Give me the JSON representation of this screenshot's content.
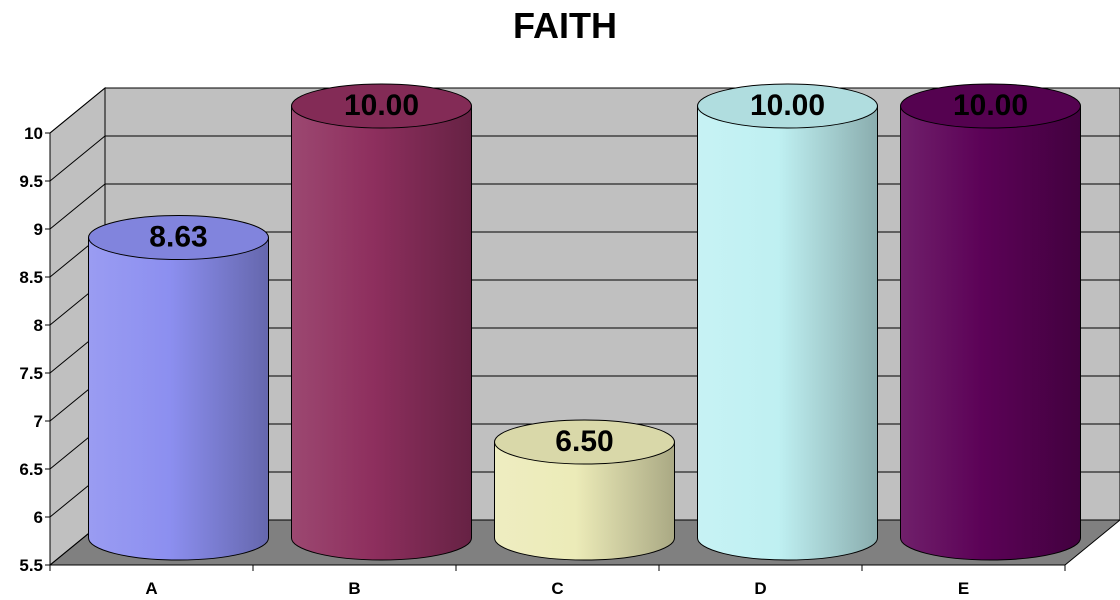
{
  "chart_data": {
    "type": "bar",
    "style": "3d-cylinder",
    "title": "FAITH",
    "xlabel": "",
    "ylabel": "",
    "categories": [
      "A",
      "B",
      "C",
      "D",
      "E"
    ],
    "values": [
      8.63,
      10.0,
      6.5,
      10.0,
      10.0
    ],
    "value_labels": [
      "8.63",
      "10.00",
      "6.50",
      "10.00",
      "10.00"
    ],
    "ylim": [
      5.5,
      10
    ],
    "yticks": [
      "5.5",
      "6",
      "6.5",
      "7",
      "7.5",
      "8",
      "8.5",
      "9",
      "9.5",
      "10"
    ],
    "grid": true,
    "legend": "none",
    "colors": [
      "#8c8ff0",
      "#8e2f5e",
      "#ecebb8",
      "#bff0f2",
      "#5c0257"
    ],
    "wall_color": "#c0c0c0",
    "floor_color": "#808080"
  }
}
